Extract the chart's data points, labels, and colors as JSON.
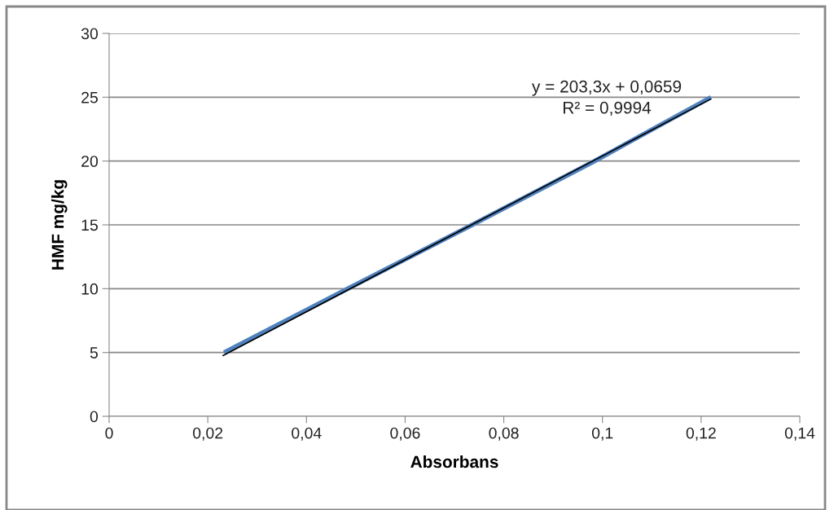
{
  "chart_data": {
    "type": "line",
    "xlabel": "Absorbans",
    "ylabel": "HMF mg/kg",
    "series": [
      {
        "color": "#4f81bd",
        "x": [
          0.0233,
          0.0484,
          0.0736,
          0.0984,
          0.122
        ],
        "values": [
          5,
          10,
          15,
          20,
          25
        ]
      },
      {
        "type": "line",
        "color": "#000000",
        "x": [
          0.023,
          0.122
        ],
        "values": [
          4.74,
          24.87
        ]
      }
    ],
    "annotations": [
      "y = 203,3x + 0,0659",
      "R² = 0,9994"
    ],
    "xlim": [
      0,
      0.14
    ],
    "ylim": [
      0,
      30
    ],
    "xticks": [
      0,
      {
        "value": 0.02,
        "label": "0,02"
      },
      {
        "value": 0.04,
        "label": "0,04"
      },
      {
        "value": 0.06,
        "label": "0,06"
      },
      {
        "value": 0.08,
        "label": "0,08"
      },
      {
        "value": 0.1,
        "label": "0,1"
      },
      {
        "value": 0.12,
        "label": "0,12"
      },
      {
        "value": 0.14,
        "label": "0,14"
      }
    ],
    "yticks": [
      0,
      5,
      10,
      15,
      20,
      25,
      30
    ],
    "grid": "y",
    "marker": "none",
    "line_style": "solid",
    "legend": false
  }
}
